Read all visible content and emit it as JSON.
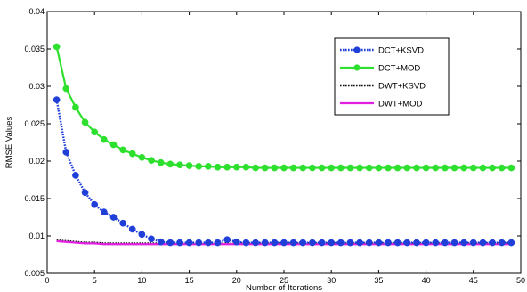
{
  "chart_data": {
    "type": "line",
    "xlabel": "Number of Iterations",
    "ylabel": "RMSE Values",
    "xlim": [
      0,
      50
    ],
    "ylim": [
      0.005,
      0.04
    ],
    "x_ticks": [
      0,
      5,
      10,
      15,
      20,
      25,
      30,
      35,
      40,
      45,
      50
    ],
    "y_ticks": [
      0.005,
      0.01,
      0.015,
      0.02,
      0.025,
      0.03,
      0.035,
      0.04
    ],
    "y_tick_labels": [
      "0.005",
      "0.01",
      "0.015",
      "0.02",
      "0.025",
      "0.03",
      "0.035",
      "0.04"
    ],
    "grid": false,
    "legend_position": "top-right",
    "x": [
      1,
      2,
      3,
      4,
      5,
      6,
      7,
      8,
      9,
      10,
      11,
      12,
      13,
      14,
      15,
      16,
      17,
      18,
      19,
      20,
      21,
      22,
      23,
      24,
      25,
      26,
      27,
      28,
      29,
      30,
      31,
      32,
      33,
      34,
      35,
      36,
      37,
      38,
      39,
      40,
      41,
      42,
      43,
      44,
      45,
      46,
      47,
      48,
      49
    ],
    "series": [
      {
        "name": "DCT+KSVD",
        "color": "#1f3fd8",
        "line_style": "dotted",
        "marker": "circle-filled",
        "values": [
          0.0282,
          0.0212,
          0.0181,
          0.0158,
          0.0142,
          0.0132,
          0.0125,
          0.0117,
          0.0109,
          0.0102,
          0.0096,
          0.0092,
          0.0091,
          0.0091,
          0.0091,
          0.0091,
          0.0091,
          0.0091,
          0.0095,
          0.0092,
          0.0091,
          0.0091,
          0.0091,
          0.0091,
          0.0091,
          0.0091,
          0.0091,
          0.0091,
          0.0091,
          0.0091,
          0.0091,
          0.0091,
          0.0091,
          0.0091,
          0.0091,
          0.0091,
          0.0091,
          0.0091,
          0.0091,
          0.0091,
          0.0091,
          0.0091,
          0.0091,
          0.0091,
          0.0091,
          0.0091,
          0.0091,
          0.0091,
          0.0091
        ]
      },
      {
        "name": "DCT+MOD",
        "color": "#2ee02e",
        "line_style": "solid",
        "marker": "circle-filled",
        "values": [
          0.0353,
          0.0297,
          0.0272,
          0.0252,
          0.0239,
          0.0229,
          0.0222,
          0.0215,
          0.021,
          0.0205,
          0.0201,
          0.0198,
          0.0196,
          0.0195,
          0.0194,
          0.0193,
          0.0193,
          0.0192,
          0.0192,
          0.0192,
          0.0192,
          0.0191,
          0.0191,
          0.0191,
          0.0191,
          0.0191,
          0.0191,
          0.0191,
          0.0191,
          0.0191,
          0.0191,
          0.0191,
          0.0191,
          0.0191,
          0.0191,
          0.0191,
          0.0191,
          0.0191,
          0.0191,
          0.0191,
          0.0191,
          0.0191,
          0.0191,
          0.0191,
          0.0191,
          0.0191,
          0.0191,
          0.0191,
          0.0191
        ]
      },
      {
        "name": "DWT+KSVD",
        "color": "#111111",
        "line_style": "dotted",
        "marker": "none",
        "values": [
          0.0094,
          0.0093,
          0.0092,
          0.0091,
          0.0091,
          0.009,
          0.009,
          0.009,
          0.009,
          0.009,
          0.009,
          0.009,
          0.009,
          0.009,
          0.009,
          0.009,
          0.009,
          0.009,
          0.009,
          0.009,
          0.009,
          0.009,
          0.009,
          0.009,
          0.009,
          0.009,
          0.009,
          0.009,
          0.009,
          0.009,
          0.009,
          0.009,
          0.009,
          0.009,
          0.009,
          0.009,
          0.009,
          0.009,
          0.009,
          0.009,
          0.009,
          0.009,
          0.009,
          0.009,
          0.009,
          0.009,
          0.009,
          0.009,
          0.009
        ]
      },
      {
        "name": "DWT+MOD",
        "color": "#e01fe0",
        "line_style": "solid",
        "marker": "none",
        "values": [
          0.0093,
          0.0092,
          0.0091,
          0.009,
          0.009,
          0.0089,
          0.0089,
          0.0089,
          0.0089,
          0.0089,
          0.0089,
          0.0089,
          0.0089,
          0.0089,
          0.0089,
          0.0089,
          0.0089,
          0.0089,
          0.0089,
          0.0089,
          0.0089,
          0.0089,
          0.0089,
          0.0089,
          0.0089,
          0.0089,
          0.0089,
          0.0089,
          0.0089,
          0.0089,
          0.0089,
          0.0089,
          0.0089,
          0.0089,
          0.0089,
          0.0089,
          0.0089,
          0.0089,
          0.0089,
          0.0089,
          0.0089,
          0.0089,
          0.0089,
          0.0089,
          0.0089,
          0.0089,
          0.0089,
          0.0089,
          0.0089
        ]
      }
    ]
  }
}
